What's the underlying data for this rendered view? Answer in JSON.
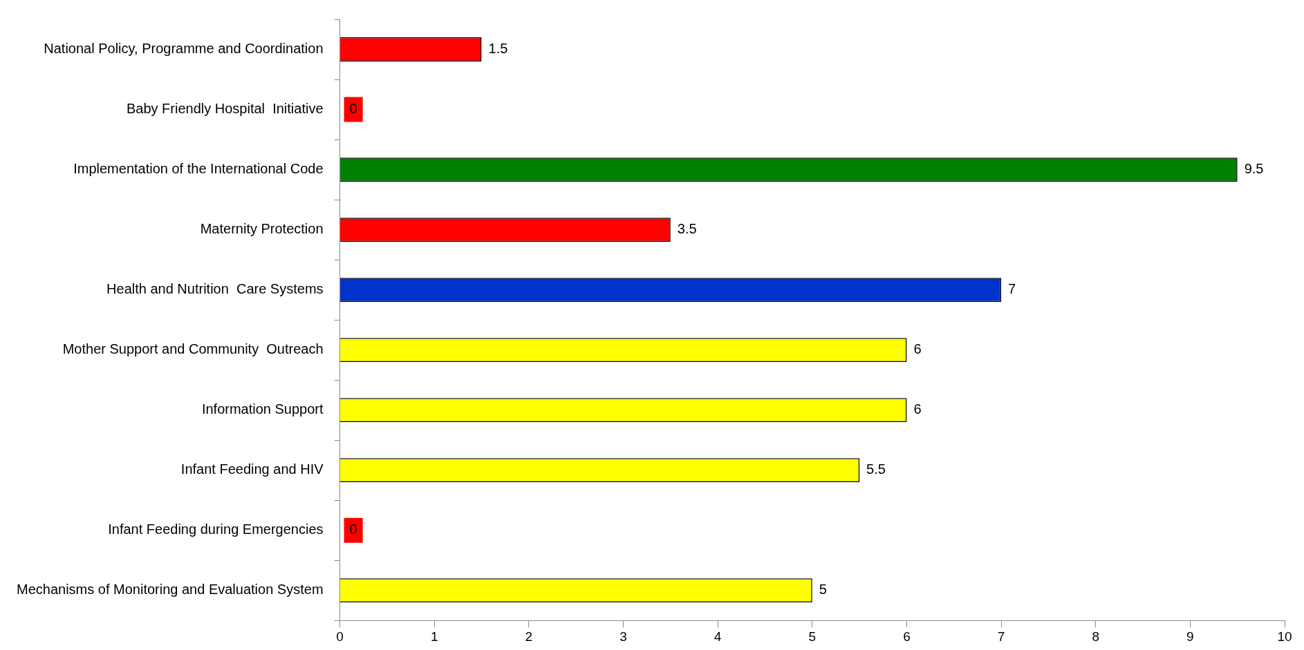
{
  "chart_data": {
    "type": "bar",
    "orientation": "horizontal",
    "categories": [
      "National Policy, Programme and Coordination",
      "Baby Friendly Hospital  Initiative",
      "Implementation of the International Code",
      "Maternity Protection",
      "Health and Nutrition  Care Systems",
      "Mother Support and Community  Outreach",
      "Information Support",
      "Infant Feeding and HIV",
      "Infant Feeding during Emergencies",
      "Mechanisms of Monitoring and Evaluation System"
    ],
    "values": [
      1.5,
      0,
      9.5,
      3.5,
      7,
      6,
      6,
      5.5,
      0,
      5
    ],
    "colors": [
      "#ff0000",
      "#ff0000",
      "#008000",
      "#ff0000",
      "#0033cc",
      "#ffff00",
      "#ffff00",
      "#ffff00",
      "#ff0000",
      "#ffff00"
    ],
    "xlim": [
      0,
      10
    ],
    "xticks": [
      0,
      1,
      2,
      3,
      4,
      5,
      6,
      7,
      8,
      9,
      10
    ],
    "grid": false,
    "legend": false,
    "data_labels": true
  }
}
